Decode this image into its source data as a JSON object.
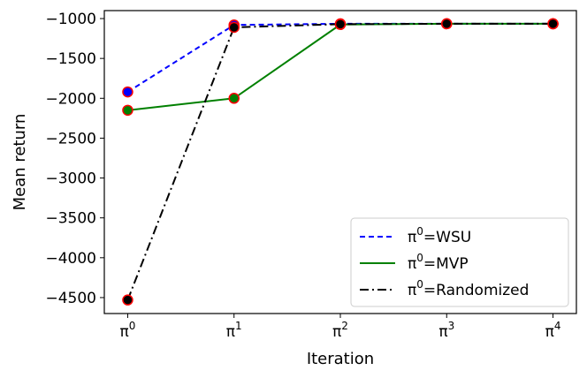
{
  "chart_data": {
    "type": "line",
    "title": "",
    "xlabel": "Iteration",
    "ylabel": "Mean return",
    "x_tick_labels": [
      {
        "base": "π",
        "sup": "0"
      },
      {
        "base": "π",
        "sup": "1"
      },
      {
        "base": "π",
        "sup": "2"
      },
      {
        "base": "π",
        "sup": "3"
      },
      {
        "base": "π",
        "sup": "4"
      }
    ],
    "x": [
      0,
      1,
      2,
      3,
      4
    ],
    "xlim": [
      -0.22,
      4.22
    ],
    "ylim": [
      -4700,
      -900
    ],
    "y_ticks": [
      -1000,
      -1500,
      -2000,
      -2500,
      -3000,
      -3500,
      -4000,
      -4500
    ],
    "y_tick_labels": [
      "−1000",
      "−1500",
      "−2000",
      "−2500",
      "−3000",
      "−3500",
      "−4000",
      "−4500"
    ],
    "grid": false,
    "legend_position": "lower-right",
    "marker_edge_color": "#ff0000",
    "series": [
      {
        "name": "WSU",
        "legend_base": "π",
        "legend_sup": "0",
        "legend_text": "=WSU",
        "values": [
          -1920,
          -1080,
          -1065,
          -1065,
          -1065
        ],
        "color": "#0000ff",
        "dash": "6,4"
      },
      {
        "name": "MVP",
        "legend_base": "π",
        "legend_sup": "0",
        "legend_text": "=MVP",
        "values": [
          -2150,
          -2000,
          -1075,
          -1065,
          -1065
        ],
        "color": "#008000",
        "dash": ""
      },
      {
        "name": "Randomized",
        "legend_base": "π",
        "legend_sup": "0",
        "legend_text": "=Randomized",
        "values": [
          -4530,
          -1110,
          -1070,
          -1065,
          -1065
        ],
        "color": "#000000",
        "dash": "10,4,2,4"
      }
    ]
  }
}
